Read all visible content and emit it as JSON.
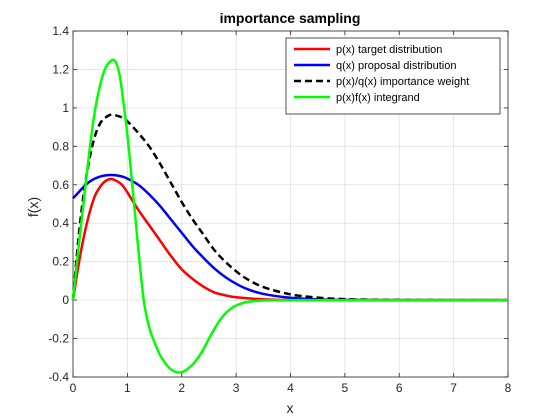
{
  "chart_data": {
    "type": "line",
    "title": "importance sampling",
    "xlabel": "x",
    "ylabel": "f(x)",
    "xlim": [
      0,
      8
    ],
    "ylim": [
      -0.4,
      1.4
    ],
    "x_ticks": [
      0,
      1,
      2,
      3,
      4,
      5,
      6,
      7,
      8
    ],
    "y_ticks": [
      -0.4,
      -0.2,
      0,
      0.2,
      0.4,
      0.6,
      0.8,
      1,
      1.2,
      1.4
    ],
    "x_tick_labels": [
      "0",
      "1",
      "2",
      "3",
      "4",
      "5",
      "6",
      "7",
      "8"
    ],
    "y_tick_labels": [
      "-0.4",
      "-0.2",
      "0",
      "0.2",
      "0.4",
      "0.6",
      "0.8",
      "1",
      "1.2",
      "1.4"
    ],
    "grid": true,
    "legend_position": "top-right",
    "series": [
      {
        "name": "p(x) target distribution",
        "color": "#ff0000",
        "dash": "solid",
        "x": [
          0,
          0.1,
          0.2,
          0.3,
          0.4,
          0.5,
          0.6,
          0.7,
          0.8,
          0.9,
          1.0,
          1.2,
          1.4,
          1.6,
          1.8,
          2.0,
          2.2,
          2.4,
          2.6,
          2.8,
          3.0,
          3.5,
          4.0,
          5.0,
          6.0,
          7.0,
          8.0
        ],
        "y": [
          0,
          0.18,
          0.33,
          0.45,
          0.54,
          0.59,
          0.62,
          0.63,
          0.62,
          0.6,
          0.56,
          0.47,
          0.39,
          0.31,
          0.23,
          0.16,
          0.11,
          0.07,
          0.04,
          0.025,
          0.015,
          0.004,
          0.001,
          0,
          0,
          0,
          0
        ]
      },
      {
        "name": "q(x) proposal distribution",
        "color": "#0000ff",
        "dash": "solid",
        "x": [
          0,
          0.1,
          0.2,
          0.3,
          0.4,
          0.5,
          0.6,
          0.7,
          0.8,
          0.9,
          1.0,
          1.2,
          1.4,
          1.6,
          1.8,
          2.0,
          2.2,
          2.4,
          2.6,
          2.8,
          3.0,
          3.2,
          3.5,
          4.0,
          4.5,
          5.0,
          6.0,
          7.0,
          8.0
        ],
        "y": [
          0.53,
          0.56,
          0.59,
          0.615,
          0.632,
          0.643,
          0.649,
          0.651,
          0.649,
          0.643,
          0.632,
          0.6,
          0.55,
          0.49,
          0.42,
          0.35,
          0.28,
          0.22,
          0.165,
          0.12,
          0.085,
          0.058,
          0.032,
          0.012,
          0.004,
          0.001,
          0,
          0,
          0
        ]
      },
      {
        "name": "p(x)/q(x) importance weight",
        "color": "#000000",
        "dash": "dashed",
        "x": [
          0,
          0.1,
          0.2,
          0.3,
          0.4,
          0.5,
          0.6,
          0.7,
          0.8,
          0.9,
          1.0,
          1.2,
          1.4,
          1.6,
          1.8,
          2.0,
          2.2,
          2.4,
          2.6,
          2.8,
          3.0,
          3.2,
          3.5,
          4.0,
          4.5,
          5.0,
          5.5,
          6.0,
          7.0,
          8.0
        ],
        "y": [
          0,
          0.32,
          0.56,
          0.73,
          0.85,
          0.92,
          0.95,
          0.965,
          0.96,
          0.95,
          0.93,
          0.87,
          0.8,
          0.71,
          0.61,
          0.51,
          0.42,
          0.34,
          0.26,
          0.2,
          0.15,
          0.11,
          0.068,
          0.03,
          0.013,
          0.005,
          0.002,
          0.001,
          0,
          0
        ]
      },
      {
        "name": "p(x)f(x) integrand",
        "color": "#00ff00",
        "dash": "solid",
        "x": [
          0,
          0.1,
          0.2,
          0.3,
          0.4,
          0.5,
          0.6,
          0.7,
          0.75,
          0.8,
          0.85,
          0.9,
          1.0,
          1.1,
          1.2,
          1.3,
          1.4,
          1.5,
          1.6,
          1.7,
          1.8,
          1.9,
          2.0,
          2.1,
          2.2,
          2.3,
          2.4,
          2.5,
          2.6,
          2.7,
          2.8,
          2.9,
          3.0,
          3.2,
          3.5,
          4.0,
          5.0,
          6.0,
          7.0,
          8.0
        ],
        "y": [
          0,
          0.27,
          0.52,
          0.77,
          0.98,
          1.12,
          1.21,
          1.245,
          1.25,
          1.23,
          1.18,
          1.09,
          0.86,
          0.57,
          0.27,
          0.0,
          -0.14,
          -0.22,
          -0.285,
          -0.33,
          -0.36,
          -0.375,
          -0.375,
          -0.36,
          -0.335,
          -0.3,
          -0.255,
          -0.2,
          -0.15,
          -0.105,
          -0.07,
          -0.045,
          -0.028,
          -0.01,
          -0.002,
          0,
          0,
          0,
          0,
          0
        ]
      }
    ]
  }
}
